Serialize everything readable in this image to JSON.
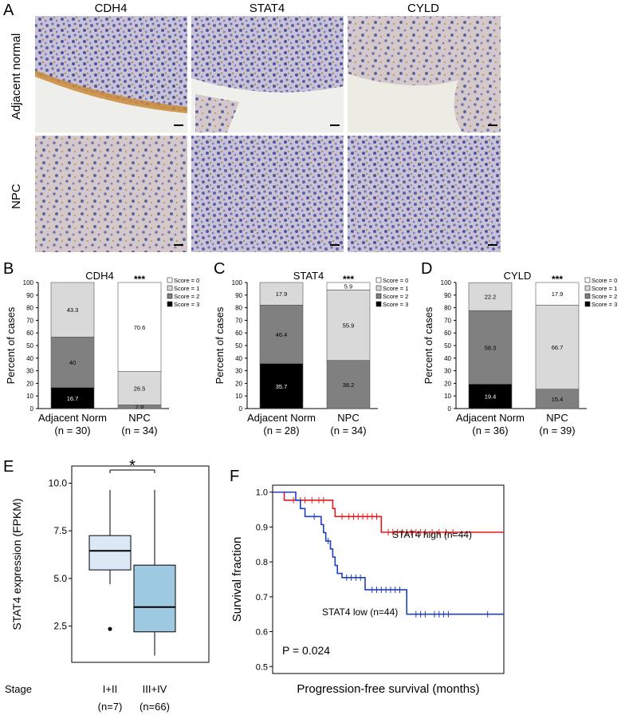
{
  "panel_A": {
    "letter": "A",
    "columns": [
      "CDH4",
      "STAT4",
      "CYLD"
    ],
    "rows": [
      "Adjacent normal",
      "NPC"
    ]
  },
  "panel_B": {
    "letter": "B"
  },
  "panel_C": {
    "letter": "C"
  },
  "panel_D": {
    "letter": "D"
  },
  "panel_E": {
    "letter": "E"
  },
  "panel_F": {
    "letter": "F"
  },
  "colors": {
    "score0": "#ffffff",
    "score1": "#d9d9d9",
    "score2": "#808080",
    "score3": "#000000",
    "box_early": "#dbe9f6",
    "box_late": "#9ecae1",
    "km_high": "#e41a1c",
    "km_low": "#1f3fbf"
  },
  "chart_data": [
    {
      "type": "bar",
      "stacked": true,
      "title": "CDH4",
      "ylabel": "Percent of cases",
      "ylim": [
        0,
        100
      ],
      "yticks": [
        0,
        10,
        20,
        30,
        40,
        50,
        60,
        70,
        80,
        90,
        100
      ],
      "categories": [
        "Adjacent Norm",
        "NPC"
      ],
      "category_n": [
        "(n = 30)",
        "(n = 34)"
      ],
      "significance": "***",
      "legend": [
        "Score = 0",
        "Score = 1",
        "Score = 2",
        "Score = 3"
      ],
      "series": [
        {
          "name": "Score = 3",
          "values": [
            16.7,
            0
          ]
        },
        {
          "name": "Score = 2",
          "values": [
            40,
            2.9
          ]
        },
        {
          "name": "Score = 1",
          "values": [
            43.3,
            26.5
          ]
        },
        {
          "name": "Score = 0",
          "values": [
            0,
            70.6
          ]
        }
      ],
      "data_labels": [
        [
          "16.7",
          "40",
          "43.3",
          ""
        ],
        [
          "",
          "2.9",
          "26.5",
          "70.6"
        ]
      ]
    },
    {
      "type": "bar",
      "stacked": true,
      "title": "STAT4",
      "ylabel": "Percent of cases",
      "ylim": [
        0,
        100
      ],
      "yticks": [
        0,
        10,
        20,
        30,
        40,
        50,
        60,
        70,
        80,
        90,
        100
      ],
      "categories": [
        "Adjacent Norm",
        "NPC"
      ],
      "category_n": [
        "(n = 28)",
        "(n = 34)"
      ],
      "significance": "***",
      "legend": [
        "Score = 0",
        "Score = 1",
        "Score = 2",
        "Score = 3"
      ],
      "series": [
        {
          "name": "Score = 3",
          "values": [
            35.7,
            0
          ]
        },
        {
          "name": "Score = 2",
          "values": [
            46.4,
            38.2
          ]
        },
        {
          "name": "Score = 1",
          "values": [
            17.9,
            55.9
          ]
        },
        {
          "name": "Score = 0",
          "values": [
            0,
            5.9
          ]
        }
      ],
      "data_labels": [
        [
          "35.7",
          "46.4",
          "17.9",
          ""
        ],
        [
          "",
          "38.2",
          "55.9",
          "5.9"
        ]
      ]
    },
    {
      "type": "bar",
      "stacked": true,
      "title": "CYLD",
      "ylabel": "Percent of cases",
      "ylim": [
        0,
        100
      ],
      "yticks": [
        0,
        10,
        20,
        30,
        40,
        50,
        60,
        70,
        80,
        90,
        100
      ],
      "categories": [
        "Adjacent Norm",
        "NPC"
      ],
      "category_n": [
        "(n = 36)",
        "(n = 39)"
      ],
      "significance": "***",
      "legend": [
        "Score = 0",
        "Score = 1",
        "Score = 2",
        "Score = 3"
      ],
      "series": [
        {
          "name": "Score = 3",
          "values": [
            19.4,
            0
          ]
        },
        {
          "name": "Score = 2",
          "values": [
            58.3,
            15.4
          ]
        },
        {
          "name": "Score = 1",
          "values": [
            22.2,
            66.7
          ]
        },
        {
          "name": "Score = 0",
          "values": [
            0,
            17.9
          ]
        }
      ],
      "data_labels": [
        [
          "19.4",
          "58.3",
          "22.2",
          ""
        ],
        [
          "",
          "15.4",
          "66.7",
          "17.9"
        ]
      ]
    },
    {
      "type": "box",
      "ylabel": "STAT4 expression (FPKM)",
      "ylim": [
        0.6,
        10.9
      ],
      "yticks": [
        2.5,
        5.0,
        7.5,
        10.0
      ],
      "ytick_labels": [
        "2.5",
        "5.0",
        "7.5",
        "10.0"
      ],
      "xlabel_prefix": "Stage",
      "categories": [
        "I+II",
        "III+IV"
      ],
      "category_n": [
        "(n=7)",
        "(n=66)"
      ],
      "significance": "*",
      "boxes": [
        {
          "name": "I+II",
          "whisker_low": 4.7,
          "q1": 5.45,
          "median": 6.45,
          "q3": 7.25,
          "whisker_high": 9.65,
          "outliers": [
            2.35
          ]
        },
        {
          "name": "III+IV",
          "whisker_low": 0.95,
          "q1": 2.2,
          "median": 3.5,
          "q3": 5.7,
          "whisker_high": 9.65,
          "outliers": []
        }
      ]
    },
    {
      "type": "line",
      "subtype": "kaplan-meier",
      "xlabel": "Progression-free survival (months)",
      "ylabel": "Survival fraction",
      "ylim": [
        0.48,
        1.02
      ],
      "yticks": [
        0.5,
        0.6,
        0.7,
        0.8,
        0.9,
        1.0
      ],
      "ytick_labels": [
        "0.5",
        "0.6",
        "0.7",
        "0.8",
        "0.9",
        "1.0"
      ],
      "xlim": [
        0,
        100
      ],
      "annotation": "P = 0.024",
      "series": [
        {
          "name": "STAT4 high (n=44)",
          "steps": [
            [
              0,
              1.0
            ],
            [
              5,
              0.977
            ],
            [
              26,
              0.953
            ],
            [
              27,
              0.93
            ],
            [
              47,
              0.885
            ],
            [
              100,
              0.885
            ]
          ],
          "censors": [
            [
              9,
              0.977
            ],
            [
              12,
              0.977
            ],
            [
              14,
              0.977
            ],
            [
              17,
              0.977
            ],
            [
              20,
              0.977
            ],
            [
              22,
              0.977
            ],
            [
              30,
              0.93
            ],
            [
              33,
              0.93
            ],
            [
              35,
              0.93
            ],
            [
              37,
              0.93
            ],
            [
              39,
              0.93
            ],
            [
              41,
              0.93
            ],
            [
              43,
              0.93
            ],
            [
              45,
              0.93
            ],
            [
              50,
              0.885
            ],
            [
              52,
              0.885
            ],
            [
              54,
              0.885
            ],
            [
              56,
              0.885
            ],
            [
              58,
              0.885
            ],
            [
              60,
              0.885
            ],
            [
              62,
              0.885
            ],
            [
              64,
              0.885
            ],
            [
              66,
              0.885
            ],
            [
              69,
              0.885
            ],
            [
              72,
              0.885
            ],
            [
              75,
              0.885
            ],
            [
              78,
              0.885
            ]
          ]
        },
        {
          "name": "STAT4 low (n=44)",
          "steps": [
            [
              0,
              1.0
            ],
            [
              10,
              0.977
            ],
            [
              12,
              0.953
            ],
            [
              14,
              0.93
            ],
            [
              21,
              0.907
            ],
            [
              22,
              0.884
            ],
            [
              23,
              0.86
            ],
            [
              25,
              0.837
            ],
            [
              26,
              0.814
            ],
            [
              27,
              0.79
            ],
            [
              28,
              0.767
            ],
            [
              30,
              0.755
            ],
            [
              40,
              0.72
            ],
            [
              58,
              0.65
            ],
            [
              100,
              0.65
            ]
          ],
          "censors": [
            [
              18,
              0.93
            ],
            [
              24,
              0.86
            ],
            [
              32,
              0.755
            ],
            [
              34,
              0.755
            ],
            [
              36,
              0.755
            ],
            [
              38,
              0.755
            ],
            [
              43,
              0.72
            ],
            [
              45,
              0.72
            ],
            [
              47,
              0.72
            ],
            [
              49,
              0.72
            ],
            [
              51,
              0.72
            ],
            [
              53,
              0.72
            ],
            [
              55,
              0.72
            ],
            [
              62,
              0.65
            ],
            [
              64,
              0.65
            ],
            [
              66,
              0.65
            ],
            [
              70,
              0.65
            ],
            [
              72,
              0.65
            ],
            [
              74,
              0.65
            ],
            [
              76,
              0.65
            ],
            [
              93,
              0.65
            ]
          ]
        }
      ]
    }
  ]
}
